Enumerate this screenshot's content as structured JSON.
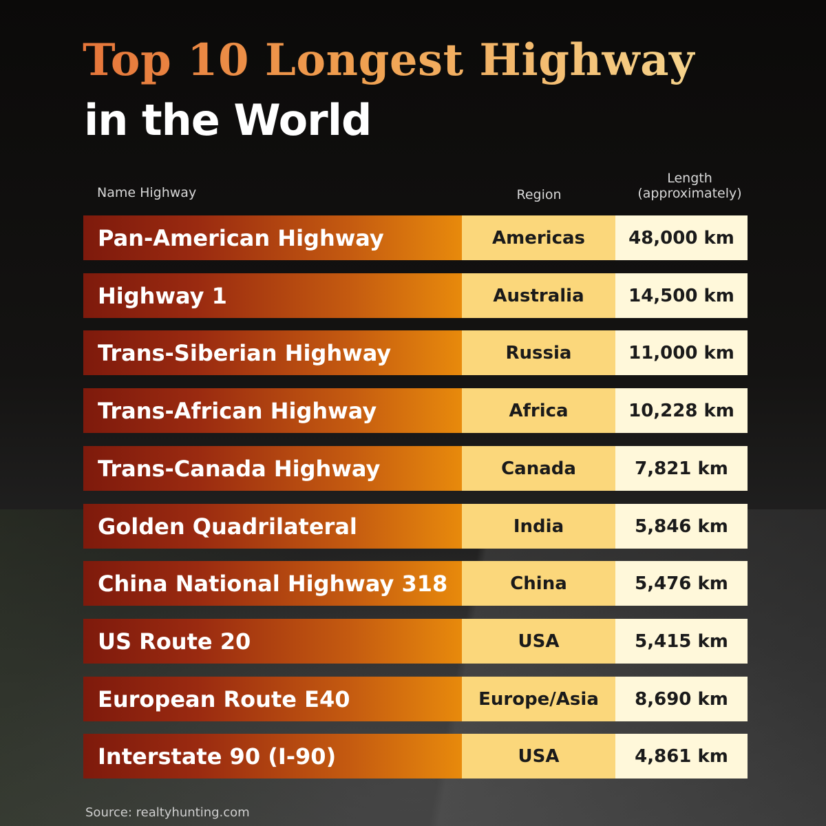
{
  "title": {
    "line1": "Top 10 Longest Highway",
    "line2": "in the World"
  },
  "headers": {
    "name": "Name Highway",
    "region": "Region",
    "length_line1": "Length",
    "length_line2": "(approximately)"
  },
  "chart_data": {
    "type": "table",
    "columns": [
      "Name Highway",
      "Region",
      "Length (approximately)"
    ],
    "rows": [
      {
        "name": "Pan-American Highway",
        "region": "Americas",
        "length": "48,000 km"
      },
      {
        "name": "Highway 1",
        "region": "Australia",
        "length": "14,500 km"
      },
      {
        "name": "Trans-Siberian Highway",
        "region": "Russia",
        "length": "11,000 km"
      },
      {
        "name": "Trans-African Highway",
        "region": "Africa",
        "length": "10,228 km"
      },
      {
        "name": "Trans-Canada Highway",
        "region": "Canada",
        "length": "7,821 km"
      },
      {
        "name": "Golden Quadrilateral",
        "region": "India",
        "length": "5,846 km"
      },
      {
        "name": "China National Highway 318",
        "region": "China",
        "length": "5,476 km"
      },
      {
        "name": "US Route 20",
        "region": "USA",
        "length": "5,415 km"
      },
      {
        "name": "European Route E40",
        "region": "Europe/Asia",
        "length": "8,690 km"
      },
      {
        "name": "Interstate 90 (I-90)",
        "region": "USA",
        "length": "4,861 km"
      }
    ]
  },
  "source": "Source: realtyhunting.com",
  "colors": {
    "name_cell_start": "#7e1a0c",
    "name_cell_end": "#e88a0c",
    "region_cell": "#fbd77b",
    "length_cell": "#fff8da",
    "title_gradient_start": "#e6763a",
    "title_gradient_end": "#f6d48c"
  }
}
